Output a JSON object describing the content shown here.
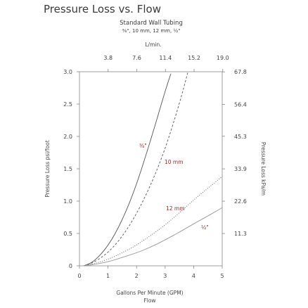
{
  "chart_data": {
    "type": "line",
    "title": "Pressure Loss vs. Flow",
    "subtitle": "Standard Wall Tubing",
    "subtitle2": "⅜\", 10 mm, 12 mm, ½\"",
    "xlabel": "Gallons Per Minute (GPM)",
    "xlabel2": "Flow",
    "ylabel": "Pressure Loss psi/foot",
    "ylabel_right": "Pressure Loss kPa/m",
    "top_axis_label": "L/min.",
    "xlim": [
      0,
      5
    ],
    "ylim": [
      0,
      3.0
    ],
    "x_ticks": [
      "0",
      "1",
      "2",
      "3",
      "4",
      "5"
    ],
    "y_ticks": [
      "0",
      "0.5",
      "1.0",
      "1.5",
      "2.0",
      "2.5",
      "3.0"
    ],
    "top_ticks": [
      "3.8",
      "7.6",
      "11.4",
      "15.2",
      "19.0"
    ],
    "right_ticks": [
      "11.3",
      "22.6",
      "33.9",
      "45.3",
      "56.4",
      "67.8"
    ],
    "series": [
      {
        "name": "⅜\"",
        "style": "solid",
        "color": "#555555",
        "x": [
          0.15,
          0.5,
          1.0,
          1.5,
          2.0,
          2.5,
          3.0,
          3.2
        ],
        "y": [
          0.0,
          0.06,
          0.3,
          0.7,
          1.25,
          1.95,
          2.7,
          2.97
        ]
      },
      {
        "name": "10 mm",
        "style": "dashed",
        "color": "#555555",
        "x": [
          0.15,
          0.5,
          1.0,
          1.5,
          2.0,
          2.5,
          3.0,
          3.5,
          3.8
        ],
        "y": [
          0.0,
          0.05,
          0.2,
          0.45,
          0.8,
          1.25,
          1.8,
          2.5,
          3.0
        ]
      },
      {
        "name": "12 mm",
        "style": "dotted",
        "color": "#555555",
        "x": [
          0.15,
          0.5,
          1.0,
          1.5,
          2.0,
          2.5,
          3.0,
          3.5,
          4.0,
          4.5,
          5.0
        ],
        "y": [
          0.0,
          0.03,
          0.1,
          0.2,
          0.32,
          0.47,
          0.63,
          0.82,
          1.02,
          1.2,
          1.38
        ]
      },
      {
        "name": "½\"",
        "style": "solid",
        "color": "#999999",
        "x": [
          0.15,
          0.5,
          1.0,
          1.5,
          2.0,
          2.5,
          3.0,
          3.5,
          4.0,
          4.5,
          5.0
        ],
        "y": [
          0.0,
          0.02,
          0.06,
          0.13,
          0.2,
          0.29,
          0.4,
          0.52,
          0.65,
          0.77,
          0.9
        ]
      }
    ],
    "grid": false,
    "legend": "inline labels"
  }
}
